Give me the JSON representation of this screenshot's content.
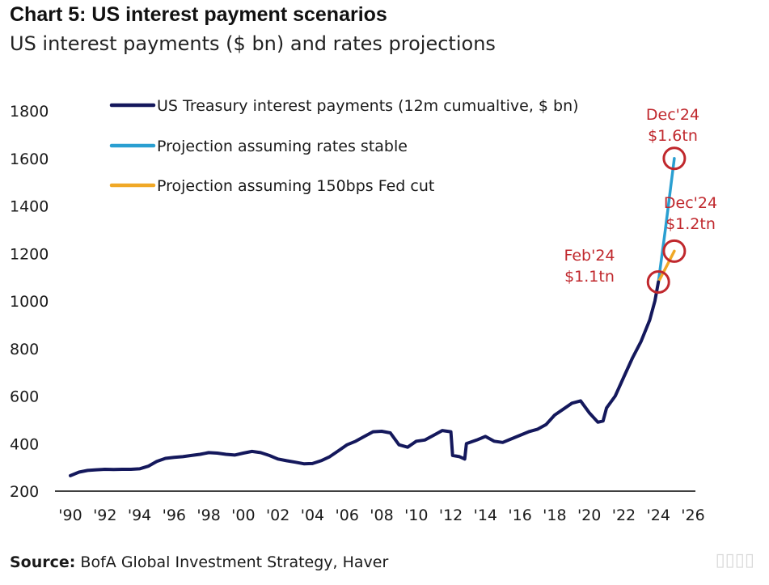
{
  "title": "Chart 5: US interest payment scenarios",
  "subtitle": "US interest payments ($ bn) and rates projections",
  "source_label": "Source:",
  "source_text": " BofA Global Investment Strategy, Haver",
  "colors": {
    "history": "#14185c",
    "stable": "#2a9fd1",
    "fedcut": "#f0a826",
    "annotation": "#c0282d",
    "axis": "#000000"
  },
  "chart_data": {
    "type": "line",
    "title": "Chart 5: US interest payment scenarios",
    "subtitle": "US interest payments ($ bn) and rates projections",
    "xlabel": "",
    "ylabel": "",
    "xlim": [
      1990,
      2026
    ],
    "ylim": [
      200,
      1800
    ],
    "grid": false,
    "legend_position": "top-left",
    "y_ticks": [
      {
        "value": 200,
        "label": "200"
      },
      {
        "value": 400,
        "label": "400"
      },
      {
        "value": 600,
        "label": "600"
      },
      {
        "value": 800,
        "label": "800"
      },
      {
        "value": 1000,
        "label": "1000"
      },
      {
        "value": 1200,
        "label": "1200"
      },
      {
        "value": 1400,
        "label": "1400"
      },
      {
        "value": 1600,
        "label": "1600"
      },
      {
        "value": 1800,
        "label": "1800"
      }
    ],
    "x_ticks": [
      {
        "value": 1990,
        "label": "'90"
      },
      {
        "value": 1992,
        "label": "'92"
      },
      {
        "value": 1994,
        "label": "'94"
      },
      {
        "value": 1996,
        "label": "'96"
      },
      {
        "value": 1998,
        "label": "'98"
      },
      {
        "value": 2000,
        "label": "'00"
      },
      {
        "value": 2002,
        "label": "'02"
      },
      {
        "value": 2004,
        "label": "'04"
      },
      {
        "value": 2006,
        "label": "'06"
      },
      {
        "value": 2008,
        "label": "'08"
      },
      {
        "value": 2010,
        "label": "'10"
      },
      {
        "value": 2012,
        "label": "'12"
      },
      {
        "value": 2014,
        "label": "'14"
      },
      {
        "value": 2016,
        "label": "'16"
      },
      {
        "value": 2018,
        "label": "'18"
      },
      {
        "value": 2020,
        "label": "'20"
      },
      {
        "value": 2022,
        "label": "'22"
      },
      {
        "value": 2024,
        "label": "'24"
      },
      {
        "value": 2026,
        "label": "'26"
      }
    ],
    "series": [
      {
        "name": "US Treasury interest payments (12m cumualtive, $ bn)",
        "color": "#14185c",
        "points": [
          [
            1990.0,
            265
          ],
          [
            1990.5,
            280
          ],
          [
            1991.0,
            287
          ],
          [
            1991.5,
            290
          ],
          [
            1992.0,
            292
          ],
          [
            1992.5,
            291
          ],
          [
            1993.0,
            292
          ],
          [
            1993.5,
            292
          ],
          [
            1994.0,
            294
          ],
          [
            1994.5,
            305
          ],
          [
            1995.0,
            325
          ],
          [
            1995.5,
            338
          ],
          [
            1996.0,
            342
          ],
          [
            1996.5,
            345
          ],
          [
            1997.0,
            350
          ],
          [
            1997.5,
            355
          ],
          [
            1998.0,
            362
          ],
          [
            1998.5,
            360
          ],
          [
            1999.0,
            355
          ],
          [
            1999.5,
            352
          ],
          [
            2000.0,
            360
          ],
          [
            2000.5,
            367
          ],
          [
            2001.0,
            362
          ],
          [
            2001.5,
            350
          ],
          [
            2002.0,
            335
          ],
          [
            2002.5,
            328
          ],
          [
            2003.0,
            322
          ],
          [
            2003.5,
            315
          ],
          [
            2004.0,
            316
          ],
          [
            2004.5,
            328
          ],
          [
            2005.0,
            345
          ],
          [
            2005.5,
            370
          ],
          [
            2006.0,
            395
          ],
          [
            2006.5,
            410
          ],
          [
            2007.0,
            430
          ],
          [
            2007.5,
            450
          ],
          [
            2008.0,
            452
          ],
          [
            2008.5,
            445
          ],
          [
            2009.0,
            395
          ],
          [
            2009.5,
            385
          ],
          [
            2010.0,
            410
          ],
          [
            2010.5,
            415
          ],
          [
            2011.0,
            435
          ],
          [
            2011.5,
            455
          ],
          [
            2012.0,
            450
          ],
          [
            2012.1,
            350
          ],
          [
            2012.5,
            345
          ],
          [
            2012.8,
            335
          ],
          [
            2012.9,
            400
          ],
          [
            2013.5,
            415
          ],
          [
            2014.0,
            430
          ],
          [
            2014.5,
            410
          ],
          [
            2015.0,
            405
          ],
          [
            2015.5,
            420
          ],
          [
            2016.0,
            435
          ],
          [
            2016.5,
            450
          ],
          [
            2017.0,
            460
          ],
          [
            2017.5,
            480
          ],
          [
            2018.0,
            520
          ],
          [
            2018.5,
            545
          ],
          [
            2019.0,
            570
          ],
          [
            2019.5,
            580
          ],
          [
            2020.0,
            530
          ],
          [
            2020.5,
            490
          ],
          [
            2020.8,
            495
          ],
          [
            2021.0,
            550
          ],
          [
            2021.5,
            600
          ],
          [
            2022.0,
            680
          ],
          [
            2022.5,
            760
          ],
          [
            2023.0,
            830
          ],
          [
            2023.5,
            920
          ],
          [
            2023.8,
            1000
          ],
          [
            2024.0,
            1080
          ]
        ]
      },
      {
        "name": "Projection assuming rates stable",
        "color": "#2a9fd1",
        "points": [
          [
            2024.0,
            1080
          ],
          [
            2024.4,
            1300
          ],
          [
            2024.92,
            1600
          ]
        ]
      },
      {
        "name": "Projection assuming 150bps Fed cut",
        "color": "#f0a826",
        "points": [
          [
            2024.0,
            1080
          ],
          [
            2024.5,
            1150
          ],
          [
            2024.92,
            1210
          ]
        ]
      }
    ],
    "annotations": [
      {
        "date_label": "Feb'24",
        "value_label": "$1.1tn",
        "x": 2024.0,
        "y": 1080
      },
      {
        "date_label": "Dec'24",
        "value_label": "$1.6tn",
        "x": 2024.92,
        "y": 1600
      },
      {
        "date_label": "Dec'24",
        "value_label": "$1.2tn",
        "x": 2024.92,
        "y": 1210
      }
    ]
  }
}
